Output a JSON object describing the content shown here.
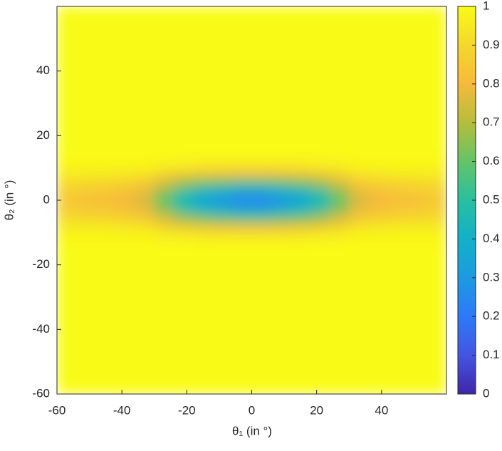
{
  "chart_data": {
    "type": "heatmap",
    "xlabel": "θ₁ (in °)",
    "ylabel": "θ₂ (in °)",
    "xbins": [
      -60,
      -54,
      -48,
      -42,
      -36,
      -30,
      -24,
      -18,
      -12,
      -6,
      0,
      6,
      12,
      18,
      24,
      30,
      36,
      42,
      48,
      54,
      60
    ],
    "ybins": [
      -60,
      -14,
      -10,
      -7,
      -4,
      -1.5,
      1.5,
      4,
      7,
      10,
      14,
      60
    ],
    "values": [
      [
        1,
        1,
        1,
        1,
        1,
        1,
        1,
        1,
        1,
        1,
        1,
        1,
        1,
        1,
        1,
        1,
        1,
        1,
        1,
        1
      ],
      [
        0.99,
        0.99,
        0.99,
        0.99,
        0.99,
        0.98,
        0.98,
        0.97,
        0.97,
        0.97,
        0.97,
        0.97,
        0.97,
        0.98,
        0.98,
        0.99,
        0.99,
        0.99,
        0.99,
        0.99
      ],
      [
        0.96,
        0.96,
        0.96,
        0.95,
        0.94,
        0.9,
        0.86,
        0.84,
        0.82,
        0.81,
        0.81,
        0.82,
        0.84,
        0.86,
        0.9,
        0.94,
        0.95,
        0.96,
        0.96,
        0.96
      ],
      [
        0.91,
        0.9,
        0.89,
        0.88,
        0.85,
        0.76,
        0.67,
        0.61,
        0.58,
        0.55,
        0.55,
        0.58,
        0.61,
        0.67,
        0.76,
        0.85,
        0.88,
        0.89,
        0.9,
        0.91
      ],
      [
        0.87,
        0.85,
        0.84,
        0.82,
        0.78,
        0.64,
        0.5,
        0.42,
        0.37,
        0.33,
        0.33,
        0.37,
        0.42,
        0.5,
        0.64,
        0.78,
        0.82,
        0.84,
        0.85,
        0.87
      ],
      [
        0.85,
        0.83,
        0.82,
        0.8,
        0.75,
        0.6,
        0.45,
        0.35,
        0.3,
        0.25,
        0.25,
        0.3,
        0.35,
        0.45,
        0.6,
        0.75,
        0.8,
        0.82,
        0.83,
        0.85
      ],
      [
        0.87,
        0.85,
        0.84,
        0.82,
        0.78,
        0.64,
        0.5,
        0.42,
        0.37,
        0.33,
        0.33,
        0.37,
        0.42,
        0.5,
        0.64,
        0.78,
        0.82,
        0.84,
        0.85,
        0.87
      ],
      [
        0.91,
        0.9,
        0.89,
        0.88,
        0.85,
        0.76,
        0.67,
        0.61,
        0.58,
        0.55,
        0.55,
        0.58,
        0.61,
        0.67,
        0.76,
        0.85,
        0.88,
        0.89,
        0.9,
        0.91
      ],
      [
        0.96,
        0.96,
        0.96,
        0.95,
        0.94,
        0.9,
        0.86,
        0.84,
        0.82,
        0.81,
        0.81,
        0.82,
        0.84,
        0.86,
        0.9,
        0.94,
        0.95,
        0.96,
        0.96,
        0.96
      ],
      [
        0.99,
        0.99,
        0.99,
        0.99,
        0.99,
        0.98,
        0.98,
        0.97,
        0.97,
        0.97,
        0.97,
        0.97,
        0.97,
        0.98,
        0.98,
        0.99,
        0.99,
        0.99,
        0.99,
        0.99
      ],
      [
        1,
        1,
        1,
        1,
        1,
        1,
        1,
        1,
        1,
        1,
        1,
        1,
        1,
        1,
        1,
        1,
        1,
        1,
        1,
        1
      ]
    ],
    "xlim": [
      -60,
      60
    ],
    "xticks": [
      -60,
      -40,
      -20,
      0,
      20,
      40
    ],
    "ylim": [
      -60,
      60
    ],
    "yticks": [
      -60,
      -40,
      -20,
      0,
      20,
      40
    ],
    "clim": [
      0,
      1
    ],
    "cticks": [
      0,
      0.1,
      0.2,
      0.3,
      0.4,
      0.5,
      0.6,
      0.7,
      0.8,
      0.9,
      1
    ],
    "colormap": [
      "#3e26a8",
      "#4455e2",
      "#2d79f9",
      "#1e9ae1",
      "#12b1c8",
      "#29bfa0",
      "#65c467",
      "#b5bd3c",
      "#f6ba3c",
      "#f5d72c",
      "#f9fb15"
    ]
  }
}
